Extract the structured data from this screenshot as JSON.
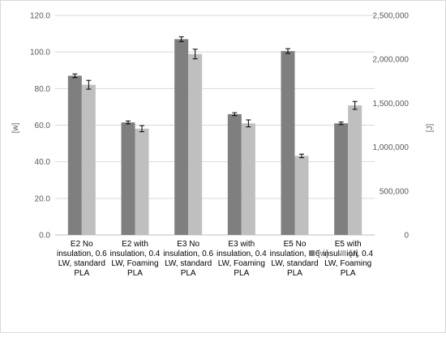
{
  "chart_data": {
    "type": "bar",
    "categories": [
      [
        "E2 No",
        "insulation, 0.6",
        "LW, standard",
        "PLA"
      ],
      [
        "E2 with",
        "insulation, 0.4",
        "LW, Foaming",
        "PLA"
      ],
      [
        "E3 No",
        "insulation, 0.6",
        "LW, standard",
        "PLA"
      ],
      [
        "E3 with",
        "insulation, 0.4",
        "LW, Foaming",
        "PLA"
      ],
      [
        "E5 No",
        "insulation, 0.6",
        "LW, standard",
        "PLA"
      ],
      [
        "E5 with",
        "insulation, 0.4",
        "LW, Foaming",
        "PLA"
      ]
    ],
    "series": [
      {
        "name": "[w]",
        "axis": "left",
        "color": "#7f7f7f",
        "values": [
          87.0,
          61.5,
          107.0,
          66.0,
          100.5,
          61.0
        ],
        "errors": [
          1.0,
          0.8,
          1.3,
          0.8,
          1.3,
          0.7
        ]
      },
      {
        "name": "[J]",
        "axis": "right",
        "color": "#bfbfbf",
        "values": [
          1710000,
          1210000,
          2060000,
          1270000,
          900000,
          1475000
        ],
        "errors": [
          50000,
          35000,
          55000,
          40000,
          20000,
          45000
        ]
      }
    ],
    "ylabel_left": "[w]",
    "ylabel_right": "[J]",
    "ylim_left": [
      0,
      120
    ],
    "ylim_right": [
      0,
      2500000
    ],
    "yticks_left": [
      "0.0",
      "20.0",
      "40.0",
      "60.0",
      "80.0",
      "100.0",
      "120.0"
    ],
    "yticks_right": [
      "0",
      "500,000",
      "1,000,000",
      "1,500,000",
      "2,000,000",
      "2,500,000"
    ],
    "grid": true,
    "legend_position": "bottom-right",
    "colors": {
      "grid": "#d9d9d9",
      "text": "#595959",
      "border": "#d9d9d9"
    }
  }
}
